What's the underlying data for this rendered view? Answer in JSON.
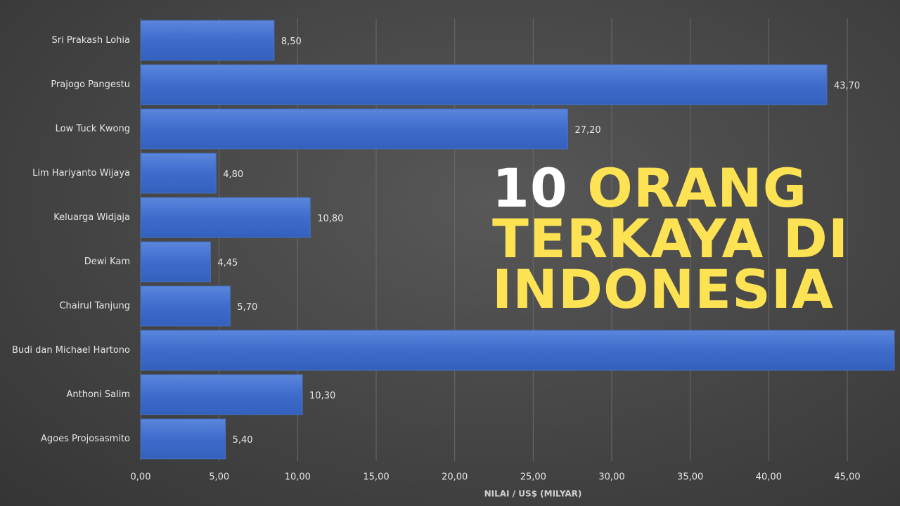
{
  "chart_data": {
    "type": "barh",
    "title": {
      "number": "10",
      "text": "ORANG TERKAYA DI INDONESIA"
    },
    "x_label": "NILAI / US$ (MILYAR)",
    "categories": [
      "Sri Prakash Lohia",
      "Prajogo Pangestu",
      "Low Tuck Kwong",
      "Lim Hariyanto Wijaya",
      "Keluarga Widjaja",
      "Dewi Kam",
      "Chairul Tanjung",
      "Budi dan Michael Hartono",
      "Anthoni Salim",
      "Agoes Projosasmito"
    ],
    "values": [
      8.5,
      43.7,
      27.2,
      4.8,
      10.8,
      4.45,
      5.7,
      48,
      10.3,
      5.4
    ],
    "value_labels": [
      "8,50",
      "43,70",
      "27,20",
      "4,80",
      "10,80",
      "4,45",
      "5,70",
      null,
      "10,30",
      "5,40"
    ],
    "color": "#4472c4",
    "xlim": [
      0,
      48
    ],
    "xticks": [
      {
        "value": 0,
        "label": "0,00"
      },
      {
        "value": 5,
        "label": "5,00"
      },
      {
        "value": 10,
        "label": "10,00"
      },
      {
        "value": 15,
        "label": "15,00"
      },
      {
        "value": 20,
        "label": "20,00"
      },
      {
        "value": 25,
        "label": "25,00"
      },
      {
        "value": 30,
        "label": "30,00"
      },
      {
        "value": 35,
        "label": "35,00"
      },
      {
        "value": 40,
        "label": "40,00"
      },
      {
        "value": 45,
        "label": "45,00"
      }
    ],
    "grid": true
  }
}
